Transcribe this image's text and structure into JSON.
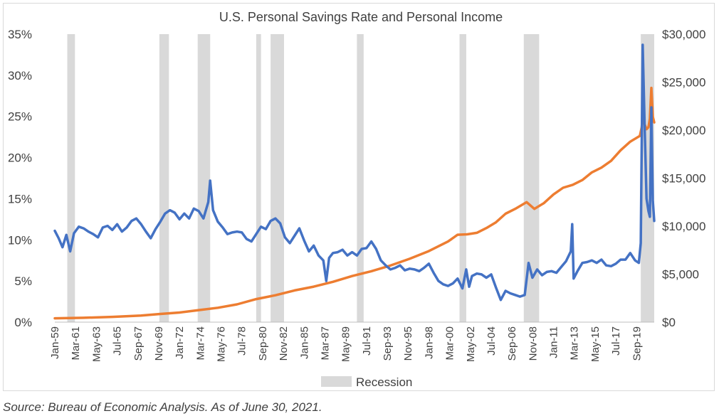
{
  "chart_data": {
    "type": "line",
    "title": "U.S. Personal Savings Rate and Personal Income",
    "x_range": [
      "Jan-59",
      "Jun-21"
    ],
    "x_tick_labels": [
      "Jan-59",
      "Mar-61",
      "May-63",
      "Jul-65",
      "Sep-67",
      "Nov-69",
      "Jan-72",
      "Mar-74",
      "May-76",
      "Jul-78",
      "Sep-80",
      "Nov-82",
      "Jan-85",
      "Mar-87",
      "May-89",
      "Jul-91",
      "Sep-93",
      "Nov-95",
      "Jan-98",
      "Mar-00",
      "May-02",
      "Jul-04",
      "Sep-06",
      "Nov-08",
      "Jan-11",
      "Mar-13",
      "May-15",
      "Jul-17",
      "Sep-19"
    ],
    "y_left": {
      "ticks": [
        "0%",
        "5%",
        "10%",
        "15%",
        "20%",
        "25%",
        "30%",
        "35%"
      ],
      "ylim": [
        0,
        35
      ]
    },
    "y_right": {
      "ticks": [
        "$0",
        "$5,000",
        "$10,000",
        "$15,000",
        "$20,000",
        "$25,000",
        "$30,000"
      ],
      "ylim": [
        0,
        30000
      ]
    },
    "grid": false,
    "legend_position": "bottom",
    "legend": [
      {
        "label": "Recession",
        "color": "#d9d9d9"
      }
    ],
    "recessions": [
      {
        "start": 1960.3,
        "end": 1961.1
      },
      {
        "start": 1969.9,
        "end": 1970.9
      },
      {
        "start": 1973.9,
        "end": 1975.2
      },
      {
        "start": 1980.0,
        "end": 1980.5
      },
      {
        "start": 1981.5,
        "end": 1982.9
      },
      {
        "start": 1990.5,
        "end": 1991.2
      },
      {
        "start": 2001.2,
        "end": 2001.9
      },
      {
        "start": 2007.9,
        "end": 2009.5
      },
      {
        "start": 2020.1,
        "end": 2021.5
      }
    ],
    "series": [
      {
        "axis": "left",
        "color": "#4472c4",
        "points": [
          [
            1959.0,
            11.1
          ],
          [
            1959.4,
            10.2
          ],
          [
            1959.8,
            9.1
          ],
          [
            1960.2,
            10.6
          ],
          [
            1960.6,
            8.6
          ],
          [
            1961.0,
            10.8
          ],
          [
            1961.5,
            11.6
          ],
          [
            1962.0,
            11.4
          ],
          [
            1962.5,
            11.0
          ],
          [
            1963.0,
            10.7
          ],
          [
            1963.5,
            10.3
          ],
          [
            1964.0,
            11.5
          ],
          [
            1964.5,
            11.7
          ],
          [
            1965.0,
            11.2
          ],
          [
            1965.5,
            11.9
          ],
          [
            1966.0,
            11.0
          ],
          [
            1966.5,
            11.5
          ],
          [
            1967.0,
            12.3
          ],
          [
            1967.5,
            12.6
          ],
          [
            1968.0,
            11.9
          ],
          [
            1968.5,
            11.0
          ],
          [
            1969.0,
            10.2
          ],
          [
            1969.5,
            11.3
          ],
          [
            1970.0,
            12.2
          ],
          [
            1970.5,
            13.2
          ],
          [
            1971.0,
            13.6
          ],
          [
            1971.5,
            13.3
          ],
          [
            1972.0,
            12.5
          ],
          [
            1972.5,
            13.2
          ],
          [
            1973.0,
            12.6
          ],
          [
            1973.5,
            13.8
          ],
          [
            1974.0,
            13.5
          ],
          [
            1974.5,
            12.6
          ],
          [
            1975.0,
            14.6
          ],
          [
            1975.2,
            17.2
          ],
          [
            1975.5,
            13.6
          ],
          [
            1976.0,
            12.2
          ],
          [
            1976.5,
            11.5
          ],
          [
            1977.0,
            10.7
          ],
          [
            1977.5,
            10.9
          ],
          [
            1978.0,
            11.0
          ],
          [
            1978.5,
            10.9
          ],
          [
            1979.0,
            10.1
          ],
          [
            1979.5,
            9.8
          ],
          [
            1980.0,
            10.7
          ],
          [
            1980.5,
            11.6
          ],
          [
            1981.0,
            11.3
          ],
          [
            1981.5,
            12.3
          ],
          [
            1982.0,
            12.6
          ],
          [
            1982.5,
            12.0
          ],
          [
            1983.0,
            10.3
          ],
          [
            1983.5,
            9.6
          ],
          [
            1984.0,
            10.5
          ],
          [
            1984.5,
            11.4
          ],
          [
            1985.0,
            9.9
          ],
          [
            1985.5,
            8.6
          ],
          [
            1986.0,
            9.3
          ],
          [
            1986.5,
            8.1
          ],
          [
            1987.0,
            7.5
          ],
          [
            1987.3,
            5.0
          ],
          [
            1987.6,
            7.8
          ],
          [
            1988.0,
            8.4
          ],
          [
            1988.5,
            8.5
          ],
          [
            1989.0,
            8.8
          ],
          [
            1989.5,
            8.1
          ],
          [
            1990.0,
            8.5
          ],
          [
            1990.5,
            8.1
          ],
          [
            1991.0,
            8.9
          ],
          [
            1991.5,
            9.0
          ],
          [
            1992.0,
            9.8
          ],
          [
            1992.5,
            8.9
          ],
          [
            1993.0,
            7.5
          ],
          [
            1993.5,
            6.9
          ],
          [
            1994.0,
            6.4
          ],
          [
            1994.5,
            6.6
          ],
          [
            1995.0,
            6.9
          ],
          [
            1995.5,
            6.3
          ],
          [
            1996.0,
            6.5
          ],
          [
            1996.5,
            6.4
          ],
          [
            1997.0,
            6.2
          ],
          [
            1997.5,
            6.6
          ],
          [
            1998.0,
            7.1
          ],
          [
            1998.5,
            6.0
          ],
          [
            1999.0,
            5.0
          ],
          [
            1999.5,
            4.6
          ],
          [
            2000.0,
            4.4
          ],
          [
            2000.5,
            4.7
          ],
          [
            2001.0,
            5.3
          ],
          [
            2001.5,
            4.1
          ],
          [
            2001.9,
            6.4
          ],
          [
            2002.2,
            4.3
          ],
          [
            2002.5,
            5.6
          ],
          [
            2003.0,
            5.9
          ],
          [
            2003.5,
            5.8
          ],
          [
            2004.0,
            5.4
          ],
          [
            2004.5,
            5.8
          ],
          [
            2005.0,
            4.2
          ],
          [
            2005.5,
            2.7
          ],
          [
            2006.0,
            3.8
          ],
          [
            2006.5,
            3.5
          ],
          [
            2007.0,
            3.3
          ],
          [
            2007.5,
            3.1
          ],
          [
            2008.0,
            3.3
          ],
          [
            2008.4,
            7.2
          ],
          [
            2008.8,
            5.4
          ],
          [
            2009.3,
            6.4
          ],
          [
            2009.8,
            5.7
          ],
          [
            2010.3,
            6.1
          ],
          [
            2010.8,
            6.2
          ],
          [
            2011.3,
            6.0
          ],
          [
            2011.8,
            6.7
          ],
          [
            2012.3,
            7.4
          ],
          [
            2012.8,
            8.6
          ],
          [
            2012.95,
            11.9
          ],
          [
            2013.1,
            5.3
          ],
          [
            2013.5,
            6.2
          ],
          [
            2014.0,
            7.2
          ],
          [
            2014.5,
            7.3
          ],
          [
            2015.0,
            7.5
          ],
          [
            2015.5,
            7.2
          ],
          [
            2016.0,
            7.6
          ],
          [
            2016.5,
            6.9
          ],
          [
            2017.0,
            6.8
          ],
          [
            2017.5,
            7.1
          ],
          [
            2018.0,
            7.6
          ],
          [
            2018.5,
            7.6
          ],
          [
            2019.0,
            8.4
          ],
          [
            2019.5,
            7.5
          ],
          [
            2019.9,
            7.2
          ],
          [
            2020.1,
            9.6
          ],
          [
            2020.3,
            33.7
          ],
          [
            2020.5,
            24.0
          ],
          [
            2020.7,
            15.0
          ],
          [
            2020.9,
            13.5
          ],
          [
            2021.05,
            12.8
          ],
          [
            2021.2,
            26.1
          ],
          [
            2021.35,
            14.8
          ],
          [
            2021.5,
            12.3
          ]
        ]
      },
      {
        "axis": "right",
        "color": "#ed7d31",
        "points": [
          [
            1959.0,
            400
          ],
          [
            1962.0,
            450
          ],
          [
            1965.0,
            550
          ],
          [
            1968.0,
            680
          ],
          [
            1970.0,
            850
          ],
          [
            1972.0,
            1000
          ],
          [
            1974.0,
            1250
          ],
          [
            1976.0,
            1500
          ],
          [
            1978.0,
            1850
          ],
          [
            1980.0,
            2400
          ],
          [
            1982.0,
            2800
          ],
          [
            1984.0,
            3300
          ],
          [
            1986.0,
            3700
          ],
          [
            1988.0,
            4200
          ],
          [
            1990.0,
            4800
          ],
          [
            1992.0,
            5300
          ],
          [
            1994.0,
            5900
          ],
          [
            1996.0,
            6600
          ],
          [
            1998.0,
            7400
          ],
          [
            2000.0,
            8400
          ],
          [
            2001.0,
            9100
          ],
          [
            2002.0,
            9150
          ],
          [
            2003.0,
            9300
          ],
          [
            2004.0,
            9800
          ],
          [
            2005.0,
            10400
          ],
          [
            2006.0,
            11300
          ],
          [
            2007.0,
            11800
          ],
          [
            2008.2,
            12500
          ],
          [
            2009.0,
            11800
          ],
          [
            2010.0,
            12400
          ],
          [
            2011.0,
            13300
          ],
          [
            2012.0,
            14000
          ],
          [
            2013.0,
            14300
          ],
          [
            2014.0,
            14800
          ],
          [
            2015.0,
            15600
          ],
          [
            2016.0,
            16100
          ],
          [
            2017.0,
            16800
          ],
          [
            2018.0,
            17900
          ],
          [
            2019.0,
            18800
          ],
          [
            2020.0,
            19400
          ],
          [
            2020.2,
            20300
          ],
          [
            2020.3,
            21600
          ],
          [
            2020.5,
            20600
          ],
          [
            2020.7,
            20100
          ],
          [
            2020.9,
            20300
          ],
          [
            2021.05,
            21200
          ],
          [
            2021.2,
            24400
          ],
          [
            2021.35,
            21400
          ],
          [
            2021.5,
            20800
          ]
        ]
      }
    ]
  },
  "source": "Source: Bureau of Economic Analysis. As of June 30, 2021."
}
